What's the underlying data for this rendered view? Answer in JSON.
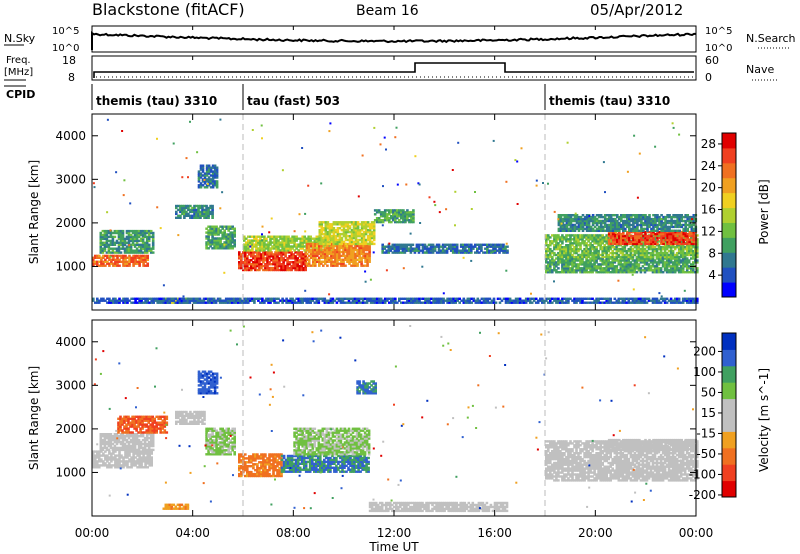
{
  "header": {
    "station": "Blackstone (fitACF)",
    "beam": "Beam 16",
    "date": "05/Apr/2012"
  },
  "summary": {
    "nsky_label": "N.Sky",
    "nsearch_label": "N.Search",
    "nsky_tick_top": "10^5",
    "nsky_tick_bottom": "10^0",
    "nsearch_tick_top": "10^5",
    "nsearch_tick_bottom": "10^0",
    "freq_label_1": "Freq.",
    "freq_label_2": "[MHz]",
    "freq_tick_top": "18",
    "freq_tick_bottom": "8",
    "nave_label": "Nave",
    "nave_tick_top": "60",
    "nave_tick_bottom": "0",
    "cpid_label": "CPID",
    "cpid_segments": [
      {
        "label": "themis (tau) 3310",
        "start_h": 0,
        "end_h": 6
      },
      {
        "label": "tau (fast) 503",
        "start_h": 6,
        "end_h": 18
      },
      {
        "label": "themis (tau) 3310",
        "start_h": 18,
        "end_h": 24
      }
    ]
  },
  "axes": {
    "xlabel": "Time UT",
    "x_ticks": [
      "00:00",
      "04:00",
      "08:00",
      "12:00",
      "16:00",
      "20:00",
      "00:00"
    ],
    "ylabel": "Slant Range [km]",
    "y_ticks": [
      "1000",
      "2000",
      "3000",
      "4000"
    ]
  },
  "colorbars": {
    "power": {
      "label": "Power [dB]",
      "ticks": [
        "4",
        "8",
        "12",
        "16",
        "20",
        "24",
        "28"
      ],
      "colors": [
        "#0000ff",
        "#2050c0",
        "#307890",
        "#40a060",
        "#70c040",
        "#b0d030",
        "#f0d020",
        "#f0a020",
        "#f07020",
        "#f04020",
        "#e00000"
      ]
    },
    "velocity": {
      "label": "Velocity [m s^-1]",
      "ticks": [
        "200",
        "100",
        "50",
        "15",
        "-15",
        "-50",
        "-100",
        "-200"
      ],
      "colors": [
        "#0030c0",
        "#3060d0",
        "#40a060",
        "#70c040",
        "#c0c0c0",
        "#c0c0c0",
        "#f0a020",
        "#f07020",
        "#f04020",
        "#e00000"
      ]
    }
  },
  "chart_data": [
    {
      "type": "heatmap",
      "title": "Power",
      "x_unit": "hours UT",
      "y_unit": "km",
      "xlim": [
        0,
        24
      ],
      "ylim": [
        0,
        4500
      ],
      "clim": [
        0,
        30
      ],
      "clusters": [
        {
          "t_start": 0.0,
          "t_end": 2.2,
          "r_start": 1000,
          "r_end": 1250,
          "value": 24
        },
        {
          "t_start": 0.3,
          "t_end": 2.4,
          "r_start": 1300,
          "r_end": 1800,
          "value": 9
        },
        {
          "t_start": 2.8,
          "t_end": 3.8,
          "r_start": 150,
          "r_end": 250,
          "value": 14
        },
        {
          "t_start": 3.3,
          "t_end": 4.8,
          "r_start": 2100,
          "r_end": 2400,
          "value": 8
        },
        {
          "t_start": 4.2,
          "t_end": 5.0,
          "r_start": 2800,
          "r_end": 3300,
          "value": 6
        },
        {
          "t_start": 4.5,
          "t_end": 5.7,
          "r_start": 1400,
          "r_end": 1900,
          "value": 10
        },
        {
          "t_start": 5.8,
          "t_end": 8.5,
          "r_start": 900,
          "r_end": 1350,
          "value": 26
        },
        {
          "t_start": 6.0,
          "t_end": 9.5,
          "r_start": 1350,
          "r_end": 1700,
          "value": 14
        },
        {
          "t_start": 8.5,
          "t_end": 11.0,
          "r_start": 1000,
          "r_end": 1500,
          "value": 22
        },
        {
          "t_start": 9.0,
          "t_end": 11.2,
          "r_start": 1500,
          "r_end": 2000,
          "value": 16
        },
        {
          "t_start": 11.2,
          "t_end": 12.8,
          "r_start": 2000,
          "r_end": 2300,
          "value": 10
        },
        {
          "t_start": 11.5,
          "t_end": 16.5,
          "r_start": 1300,
          "r_end": 1500,
          "value": 6
        },
        {
          "t_start": 0.0,
          "t_end": 24.0,
          "r_start": 150,
          "r_end": 250,
          "value": 5
        },
        {
          "t_start": 18.0,
          "t_end": 24.0,
          "r_start": 850,
          "r_end": 1200,
          "value": 10
        },
        {
          "t_start": 18.0,
          "t_end": 24.0,
          "r_start": 1200,
          "r_end": 1700,
          "value": 12
        },
        {
          "t_start": 20.5,
          "t_end": 24.0,
          "r_start": 1500,
          "r_end": 1800,
          "value": 26
        },
        {
          "t_start": 18.5,
          "t_end": 24.0,
          "r_start": 1800,
          "r_end": 2200,
          "value": 8
        }
      ]
    },
    {
      "type": "heatmap",
      "title": "Velocity",
      "x_unit": "hours UT",
      "y_unit": "km",
      "xlim": [
        0,
        24
      ],
      "ylim": [
        0,
        4500
      ],
      "clim": [
        -250,
        250
      ],
      "clusters": [
        {
          "t_start": 0.0,
          "t_end": 2.4,
          "r_start": 1100,
          "r_end": 1500,
          "value": 0
        },
        {
          "t_start": 0.3,
          "t_end": 2.4,
          "r_start": 1500,
          "r_end": 1900,
          "value": 5
        },
        {
          "t_start": 1.0,
          "t_end": 3.0,
          "r_start": 1900,
          "r_end": 2300,
          "value": -150
        },
        {
          "t_start": 2.8,
          "t_end": 3.8,
          "r_start": 150,
          "r_end": 250,
          "value": -80
        },
        {
          "t_start": 3.3,
          "t_end": 4.5,
          "r_start": 2100,
          "r_end": 2400,
          "value": 0
        },
        {
          "t_start": 4.2,
          "t_end": 5.0,
          "r_start": 2800,
          "r_end": 3300,
          "value": 180
        },
        {
          "t_start": 4.5,
          "t_end": 5.7,
          "r_start": 1400,
          "r_end": 2000,
          "value": 60
        },
        {
          "t_start": 5.8,
          "t_end": 7.5,
          "r_start": 900,
          "r_end": 1400,
          "value": -120
        },
        {
          "t_start": 7.5,
          "t_end": 11.0,
          "r_start": 1000,
          "r_end": 1400,
          "value": 150
        },
        {
          "t_start": 8.0,
          "t_end": 11.0,
          "r_start": 1400,
          "r_end": 2000,
          "value": 60
        },
        {
          "t_start": 10.5,
          "t_end": 11.3,
          "r_start": 2800,
          "r_end": 3100,
          "value": 160
        },
        {
          "t_start": 11.0,
          "t_end": 16.5,
          "r_start": 100,
          "r_end": 300,
          "value": 20
        },
        {
          "t_start": 18.0,
          "t_end": 24.0,
          "r_start": 800,
          "r_end": 1200,
          "value": 0
        },
        {
          "t_start": 18.0,
          "t_end": 24.0,
          "r_start": 1200,
          "r_end": 1700,
          "value": 20
        },
        {
          "t_start": 20.5,
          "t_end": 24.0,
          "r_start": 1500,
          "r_end": 1750,
          "value": 0
        }
      ]
    }
  ]
}
